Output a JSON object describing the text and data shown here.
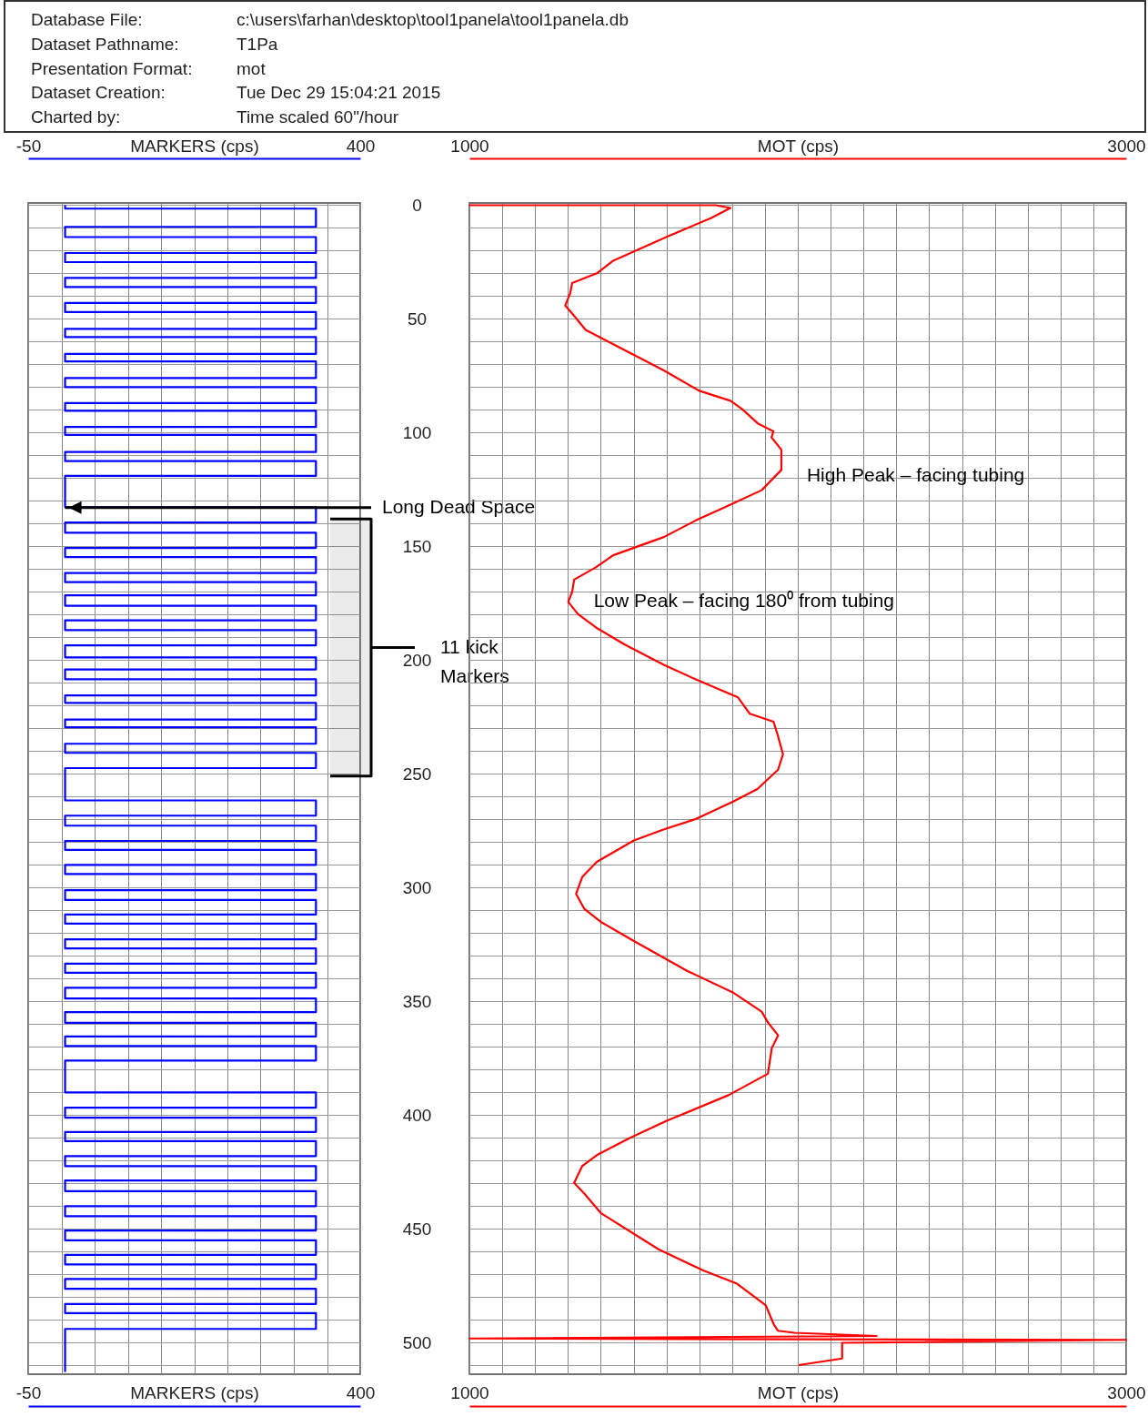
{
  "chart_data": [
    {
      "type": "line",
      "xlabel": "MARKERS (cps)",
      "x2label": "MARKERS (cps)",
      "xlim": [
        -50,
        400
      ],
      "x2lim": [
        -50,
        400
      ],
      "xticks": [
        -50,
        {
          "value": -5,
          "label": null
        },
        {
          "value": 40,
          "label": null
        },
        {
          "value": 85,
          "label": null
        },
        {
          "value": 130,
          "label": null
        },
        {
          "value": 175,
          "label": null
        },
        {
          "value": 220,
          "label": null
        },
        {
          "value": 265,
          "label": null
        },
        {
          "value": 310,
          "label": null
        },
        {
          "value": 355,
          "label": null
        },
        400
      ],
      "x2ticks": [
        -50,
        400
      ],
      "ylim": [
        514,
        -1
      ],
      "yticks": [
        0,
        {
          "value": 10,
          "label": null
        },
        {
          "value": 20,
          "label": null
        },
        {
          "value": 30,
          "label": null
        },
        {
          "value": 40,
          "label": null
        },
        50,
        {
          "value": 60,
          "label": null
        },
        {
          "value": 70,
          "label": null
        },
        {
          "value": 80,
          "label": null
        },
        {
          "value": 90,
          "label": null
        },
        100,
        {
          "value": 110,
          "label": null
        },
        {
          "value": 120,
          "label": null
        },
        {
          "value": 130,
          "label": null
        },
        {
          "value": 140,
          "label": null
        },
        150,
        {
          "value": 160,
          "label": null
        },
        {
          "value": 170,
          "label": null
        },
        {
          "value": 180,
          "label": null
        },
        {
          "value": 190,
          "label": null
        },
        200,
        {
          "value": 210,
          "label": null
        },
        {
          "value": 220,
          "label": null
        },
        {
          "value": 230,
          "label": null
        },
        {
          "value": 240,
          "label": null
        },
        250,
        {
          "value": 260,
          "label": null
        },
        {
          "value": 270,
          "label": null
        },
        {
          "value": 280,
          "label": null
        },
        {
          "value": 290,
          "label": null
        },
        300,
        {
          "value": 310,
          "label": null
        },
        {
          "value": 320,
          "label": null
        },
        {
          "value": 330,
          "label": null
        },
        {
          "value": 340,
          "label": null
        },
        350,
        {
          "value": 360,
          "label": null
        },
        {
          "value": 370,
          "label": null
        },
        {
          "value": 380,
          "label": null
        },
        {
          "value": 390,
          "label": null
        },
        400,
        {
          "value": 410,
          "label": null
        },
        {
          "value": 420,
          "label": null
        },
        {
          "value": 430,
          "label": null
        },
        {
          "value": 440,
          "label": null
        },
        450,
        {
          "value": 460,
          "label": null
        },
        {
          "value": 470,
          "label": null
        },
        {
          "value": 480,
          "label": null
        },
        {
          "value": 490,
          "label": null
        },
        500,
        {
          "value": 510,
          "label": null
        }
      ],
      "grid": true,
      "series": [
        {
          "color": "#0000ff",
          "x": [
            0,
            0,
            340,
            340,
            0,
            0,
            340,
            340,
            0,
            0,
            340,
            340,
            0,
            0,
            340,
            340,
            0,
            0,
            340,
            340,
            0,
            0,
            340,
            340,
            0,
            0,
            340,
            340,
            0,
            0,
            340,
            340,
            0,
            0,
            340,
            340,
            0,
            0,
            340,
            340,
            0,
            0,
            340,
            340,
            0,
            0,
            340,
            340,
            0,
            0,
            340,
            340,
            0,
            0,
            340,
            340,
            0,
            0,
            340,
            340,
            0,
            0,
            340,
            340,
            0,
            0,
            340,
            340,
            0,
            0,
            340,
            340,
            0,
            0,
            340,
            340,
            0,
            0,
            340,
            340,
            0,
            0,
            340,
            340,
            0,
            0,
            340,
            340,
            0,
            0,
            340,
            340,
            0,
            0,
            340,
            340,
            0,
            0,
            340,
            340,
            0,
            0,
            340,
            340,
            0,
            0,
            340,
            340,
            0,
            0,
            340,
            340,
            0,
            0,
            340,
            340,
            0,
            0,
            340,
            340,
            0,
            0,
            340,
            340,
            0,
            0,
            340,
            340,
            0,
            0,
            340,
            340,
            0,
            0,
            340,
            340,
            0,
            0,
            340,
            340,
            0,
            0,
            340,
            340,
            0,
            0,
            340,
            340,
            0,
            0,
            340,
            340,
            0,
            0,
            340,
            340,
            0,
            0,
            340,
            340,
            0,
            0,
            340,
            340,
            0,
            0,
            340,
            340,
            0,
            0,
            340,
            340,
            0,
            0
          ],
          "values": [
            0,
            1.5,
            1.5,
            9.5,
            9.5,
            14,
            14,
            21,
            21,
            25,
            25,
            32,
            32,
            36,
            36,
            43,
            43,
            47,
            47,
            54.4,
            54.4,
            58,
            58,
            65.4,
            65.4,
            68.7,
            68.7,
            76,
            76,
            80,
            80,
            87,
            87,
            90.4,
            90.4,
            97.5,
            97.5,
            101,
            101,
            108.5,
            108.5,
            112.5,
            112.5,
            119,
            119,
            132.8,
            132.8,
            139.5,
            139.5,
            144,
            144,
            150.7,
            150.7,
            154.7,
            154.7,
            161.7,
            161.7,
            165.7,
            165.7,
            171.5,
            171.5,
            176.1,
            176.1,
            182.5,
            182.5,
            186.8,
            186.8,
            193.5,
            193.5,
            198.8,
            198.8,
            204.1,
            204.1,
            208.4,
            208.4,
            215.5,
            215.5,
            218.8,
            218.8,
            226.1,
            226.1,
            229.5,
            229.5,
            236.8,
            236.8,
            240.8,
            240.8,
            247.5,
            247.5,
            261.7,
            261.7,
            268.4,
            268.4,
            272.8,
            272.8,
            279.5,
            279.5,
            283.5,
            283.5,
            290.1,
            290.1,
            294.1,
            294.1,
            301.2,
            301.2,
            305.5,
            305.5,
            311.9,
            311.9,
            315.9,
            315.9,
            322.8,
            322.8,
            326.8,
            326.8,
            333.5,
            333.5,
            337.5,
            337.5,
            344.1,
            344.1,
            348.8,
            348.8,
            354.8,
            354.8,
            359.5,
            359.5,
            365.5,
            365.5,
            369.7,
            369.7,
            376.1,
            376.1,
            390.1,
            390.1,
            396.8,
            396.8,
            401.2,
            401.2,
            407.5,
            407.5,
            411.5,
            411.5,
            418.1,
            418.1,
            422.5,
            422.5,
            428.8,
            428.8,
            433.5,
            433.5,
            440.1,
            440.1,
            444.5,
            444.5,
            450.8,
            450.8,
            455.1,
            455.1,
            461.5,
            461.5,
            465.7,
            465.7,
            472.1,
            472.1,
            476.4,
            476.4,
            483.1,
            483.1,
            487.1,
            487.1,
            494.1,
            494.1,
            513
          ]
        }
      ],
      "bands": [
        {
          "axis": "y",
          "from": 138,
          "to": 251,
          "label": "11 kick\nMarkers"
        }
      ],
      "annotations": [
        "Database File:",
        "c:\\users\\farhan\\desktop\\tool1panela\\tool1panela.db",
        "Dataset Pathname:",
        "T1Pa",
        "Presentation Format:",
        "mot",
        "Dataset Creation:",
        "Tue Dec 29 15:04:21 2015",
        "Charted by:",
        "Time scaled 60\"/hour",
        {
          "text": "Long Dead Space",
          "x": 0,
          "y": 133
        }
      ]
    },
    {
      "type": "line",
      "xlabel": "MOT (cps)",
      "x2label": "MOT (cps)",
      "xlim": [
        1000,
        3000
      ],
      "x2lim": [
        1000,
        3000
      ],
      "xticks": [
        1000,
        {
          "value": 1100,
          "label": null
        },
        {
          "value": 1200,
          "label": null
        },
        {
          "value": 1300,
          "label": null
        },
        {
          "value": 1400,
          "label": null
        },
        {
          "value": 1500,
          "label": null
        },
        {
          "value": 1600,
          "label": null
        },
        {
          "value": 1700,
          "label": null
        },
        {
          "value": 1800,
          "label": null
        },
        {
          "value": 1900,
          "label": null
        },
        {
          "value": 2000,
          "label": null
        },
        {
          "value": 2100,
          "label": null
        },
        {
          "value": 2200,
          "label": null
        },
        {
          "value": 2300,
          "label": null
        },
        {
          "value": 2400,
          "label": null
        },
        {
          "value": 2500,
          "label": null
        },
        {
          "value": 2600,
          "label": null
        },
        {
          "value": 2700,
          "label": null
        },
        {
          "value": 2800,
          "label": null
        },
        {
          "value": 2900,
          "label": null
        },
        3000
      ],
      "x2ticks": [
        1000,
        3000
      ],
      "ylim": [
        514,
        -1
      ],
      "yticks": [
        0,
        {
          "value": 10,
          "label": null
        },
        {
          "value": 20,
          "label": null
        },
        {
          "value": 30,
          "label": null
        },
        {
          "value": 40,
          "label": null
        },
        50,
        {
          "value": 60,
          "label": null
        },
        {
          "value": 70,
          "label": null
        },
        {
          "value": 80,
          "label": null
        },
        {
          "value": 90,
          "label": null
        },
        100,
        {
          "value": 110,
          "label": null
        },
        {
          "value": 120,
          "label": null
        },
        {
          "value": 130,
          "label": null
        },
        {
          "value": 140,
          "label": null
        },
        150,
        {
          "value": 160,
          "label": null
        },
        {
          "value": 170,
          "label": null
        },
        {
          "value": 180,
          "label": null
        },
        {
          "value": 190,
          "label": null
        },
        200,
        {
          "value": 210,
          "label": null
        },
        {
          "value": 220,
          "label": null
        },
        {
          "value": 230,
          "label": null
        },
        {
          "value": 240,
          "label": null
        },
        250,
        {
          "value": 260,
          "label": null
        },
        {
          "value": 270,
          "label": null
        },
        {
          "value": 280,
          "label": null
        },
        {
          "value": 290,
          "label": null
        },
        300,
        {
          "value": 310,
          "label": null
        },
        {
          "value": 320,
          "label": null
        },
        {
          "value": 330,
          "label": null
        },
        {
          "value": 340,
          "label": null
        },
        350,
        {
          "value": 360,
          "label": null
        },
        {
          "value": 370,
          "label": null
        },
        {
          "value": 380,
          "label": null
        },
        {
          "value": 390,
          "label": null
        },
        400,
        {
          "value": 410,
          "label": null
        },
        {
          "value": 420,
          "label": null
        },
        {
          "value": 430,
          "label": null
        },
        {
          "value": 440,
          "label": null
        },
        450,
        {
          "value": 460,
          "label": null
        },
        {
          "value": 470,
          "label": null
        },
        {
          "value": 480,
          "label": null
        },
        {
          "value": 490,
          "label": null
        },
        500,
        {
          "value": 510,
          "label": null
        }
      ],
      "tick_labels": "x",
      "grid": true,
      "series": [
        {
          "color": "#ff0000",
          "x": [
            1000,
            1750,
            1795,
            1735,
            1604,
            1438,
            1390,
            1313,
            1307,
            1292,
            1313,
            1354,
            1485,
            1592,
            1700,
            1795,
            1830,
            1878,
            1926,
            1920,
            1950,
            1950,
            1890,
            1783,
            1688,
            1592,
            1438,
            1384,
            1319,
            1313,
            1301,
            1331,
            1390,
            1473,
            1592,
            1688,
            1818,
            1854,
            1926,
            1938,
            1955,
            1940,
            1877,
            1802,
            1689,
            1589,
            1501,
            1388,
            1344,
            1325,
            1350,
            1400,
            1501,
            1664,
            1802,
            1890,
            1909,
            1940,
            1921,
            1909,
            1789,
            1601,
            1488,
            1388,
            1344,
            1319,
            1350,
            1400,
            1576,
            1714,
            1815,
            1902,
            1927,
            1940,
            1990,
            2240,
            1000,
            3000,
            2135,
            2135,
            2003
          ],
          "values": [
            0,
            0,
            1.2,
            5.7,
            13.7,
            24.4,
            29.8,
            34.2,
            38.7,
            44.1,
            47.6,
            54.8,
            64.6,
            72.6,
            81.6,
            86,
            89.6,
            95.9,
            99.4,
            102.1,
            107.5,
            116.4,
            125.3,
            132.5,
            138.7,
            145.9,
            153.9,
            159.3,
            164.6,
            170,
            174.4,
            179.8,
            186.1,
            193.2,
            202.1,
            208.4,
            216.4,
            223.6,
            227.1,
            232.5,
            241.4,
            248.2,
            256.7,
            262.3,
            269.9,
            274.6,
            279.3,
            288.7,
            295.3,
            302.8,
            309.4,
            315.1,
            323.5,
            336.7,
            346.1,
            354.6,
            359.3,
            365,
            370.6,
            381.9,
            391.3,
            402.6,
            410.2,
            417.7,
            422.4,
            429.9,
            434.6,
            443.1,
            459.1,
            468.5,
            474.2,
            483.6,
            492.1,
            494.9,
            495.8,
            497.2,
            498.3,
            498.9,
            500.2,
            507.1,
            510
          ]
        }
      ],
      "annotations": [
        {
          "text": "High Peak – facing tubing",
          "x": 1950,
          "y": 119
        },
        {
          "text": "Low Peak – facing 180⁰ from tubing",
          "x": 1301,
          "y": 174.4
        }
      ]
    }
  ]
}
